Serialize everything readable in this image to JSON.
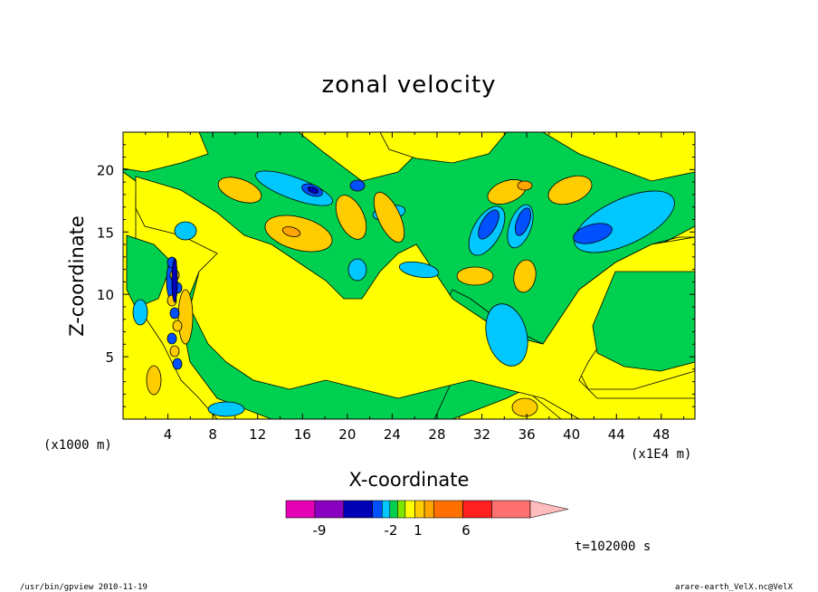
{
  "chart_data": {
    "type": "heatmap",
    "title": "zonal velocity",
    "xlabel": "X-coordinate",
    "ylabel": "Z-coordinate",
    "x_unit": "(x1E4 m)",
    "y_unit": "(x1000 m)",
    "x_ticks": [
      "4",
      "8",
      "12",
      "16",
      "20",
      "24",
      "28",
      "32",
      "36",
      "40",
      "44",
      "48"
    ],
    "y_ticks": [
      "5",
      "10",
      "15",
      "20"
    ],
    "xlim": [
      0,
      51
    ],
    "ylim": [
      0,
      23
    ],
    "colorbar": {
      "colors": [
        "#e600b4",
        "#8a00c0",
        "#0000b4",
        "#0050ff",
        "#00c8ff",
        "#00d050",
        "#80e600",
        "#ffff00",
        "#ffcc00",
        "#ffa500",
        "#ff7000",
        "#ff2020",
        "#ff7070",
        "#ffbcbc"
      ],
      "tick_labels": [
        "-9",
        "-2",
        "1",
        "6"
      ]
    },
    "time_label": "t=102000 s"
  },
  "footer": {
    "left": "/usr/bin/gpview   2010-11-19",
    "right": "arare-earth_VelX.nc@VelX"
  }
}
